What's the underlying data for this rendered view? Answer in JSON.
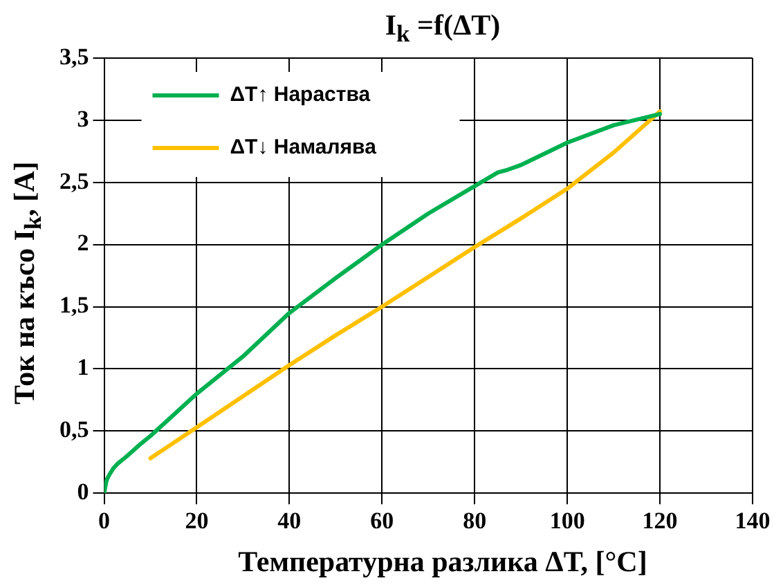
{
  "chart_data": {
    "type": "line",
    "title": "I$_{k}$ =f(ΔT)",
    "xlabel": "Температурна разлика ΔT, [°C]",
    "ylabel": "Ток на късо I$_{k}$, [A]",
    "xlim": [
      0,
      140
    ],
    "xticks": [
      0,
      20,
      40,
      60,
      80,
      100,
      120,
      140
    ],
    "ylim": [
      0,
      3.5
    ],
    "yticks": [
      0,
      {
        "value": 0.5,
        "label": "0,5"
      },
      1,
      {
        "value": 1.5,
        "label": "1,5"
      },
      2,
      {
        "value": 2.5,
        "label": "2,5"
      },
      3,
      {
        "value": 3.5,
        "label": "3,5"
      }
    ],
    "grid": true,
    "legend": "top left",
    "marker": "none",
    "line_style": "solid",
    "series": [
      {
        "name": "ΔT↑ Нараства",
        "color": "#00b050",
        "x": [
          0,
          0.5,
          1,
          2,
          3,
          5,
          8,
          10,
          15,
          20,
          25,
          30,
          40,
          50,
          60,
          70,
          80,
          85,
          87,
          90,
          100,
          110,
          120
        ],
        "values": [
          0,
          0.1,
          0.14,
          0.2,
          0.24,
          0.3,
          0.4,
          0.46,
          0.63,
          0.8,
          0.95,
          1.1,
          1.45,
          1.73,
          2.0,
          2.25,
          2.47,
          2.58,
          2.6,
          2.64,
          2.82,
          2.96,
          3.05
        ]
      },
      {
        "name": "ΔT↓ Намалява",
        "color": "#ffc000",
        "x": [
          10,
          20,
          30,
          40,
          50,
          60,
          70,
          80,
          90,
          100,
          110,
          120
        ],
        "values": [
          0.28,
          0.53,
          0.78,
          1.03,
          1.27,
          1.5,
          1.74,
          1.98,
          2.21,
          2.45,
          2.74,
          3.07
        ]
      }
    ]
  }
}
